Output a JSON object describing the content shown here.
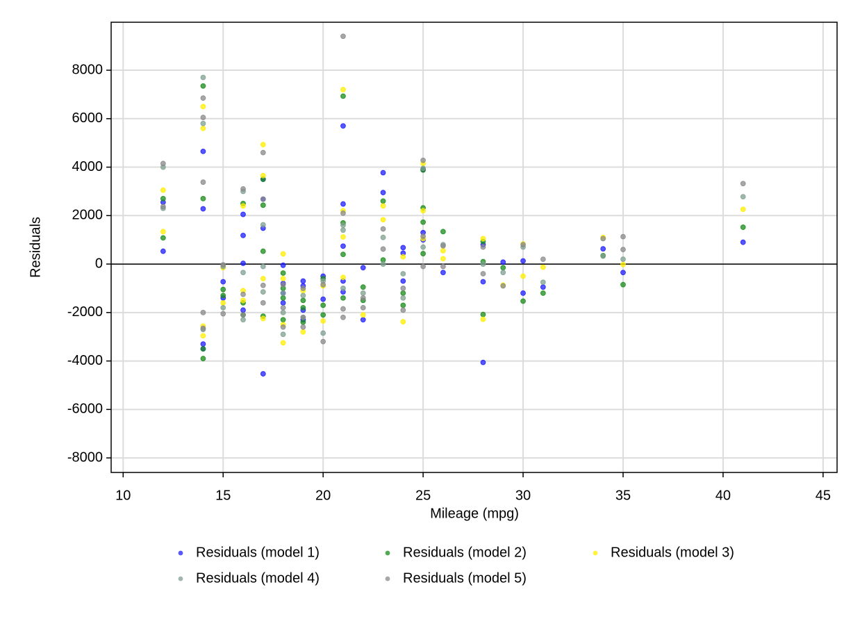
{
  "chart_data": {
    "type": "scatter",
    "x_label": "Mileage (mpg)",
    "y_label": "Residuals",
    "xlim": [
      9.4,
      45.7
    ],
    "ylim": [
      -8600,
      9980
    ],
    "xticks": [
      10,
      15,
      20,
      25,
      30,
      35,
      40,
      45
    ],
    "yticks": [
      -8000,
      -6000,
      -4000,
      -2000,
      0,
      2000,
      4000,
      6000,
      8000
    ],
    "grid": true,
    "reference_line": 0,
    "legend": "bottom",
    "series": [
      {
        "name": "Residuals (model 1)",
        "color": "#1f1fff",
        "x": [
          12,
          12,
          14,
          14,
          14,
          14,
          15,
          15,
          16,
          16,
          16,
          16,
          17,
          17,
          17,
          17,
          18,
          18,
          18,
          18,
          19,
          19,
          19,
          19,
          20,
          20,
          21,
          21,
          21,
          21,
          21,
          22,
          22,
          23,
          23,
          24,
          24,
          24,
          25,
          25,
          25,
          26,
          28,
          28,
          28,
          29,
          30,
          30,
          31,
          34,
          35,
          41
        ],
        "values": [
          2550,
          530,
          4650,
          2280,
          -3300,
          -3500,
          -1400,
          -730,
          2050,
          1180,
          30,
          -1900,
          3500,
          2680,
          1480,
          -4530,
          -50,
          -800,
          -1200,
          -1600,
          -700,
          -900,
          -1900,
          -2300,
          -500,
          -1450,
          5700,
          2480,
          740,
          -1150,
          -700,
          -150,
          -2300,
          3770,
          2950,
          680,
          450,
          -700,
          3900,
          1300,
          1000,
          -350,
          -730,
          -4060,
          800,
          80,
          -1200,
          130,
          -950,
          630,
          -350,
          900
        ]
      },
      {
        "name": "Residuals (model 2)",
        "color": "#1a8c1a",
        "x": [
          12,
          12,
          14,
          14,
          14,
          14,
          15,
          15,
          16,
          16,
          16,
          17,
          17,
          17,
          17,
          18,
          18,
          18,
          18,
          19,
          19,
          19,
          20,
          20,
          20,
          21,
          21,
          21,
          21,
          22,
          22,
          23,
          23,
          24,
          24,
          25,
          25,
          25,
          25,
          26,
          28,
          28,
          28,
          29,
          30,
          31,
          34,
          35,
          41
        ],
        "values": [
          2700,
          1080,
          7350,
          2700,
          -3500,
          -3900,
          -1050,
          -1300,
          2500,
          -2100,
          -1600,
          3500,
          2430,
          530,
          -2150,
          -370,
          -1000,
          -1400,
          -2300,
          -1500,
          -1800,
          -2400,
          -600,
          -1700,
          -2100,
          6930,
          1700,
          400,
          -1400,
          -950,
          -1500,
          2600,
          170,
          -1200,
          -1700,
          3880,
          2320,
          1730,
          430,
          1340,
          930,
          -2080,
          100,
          -150,
          -1530,
          -1200,
          350,
          -850,
          1520
        ]
      },
      {
        "name": "Residuals (model 3)",
        "color": "#ffee00",
        "x": [
          12,
          12,
          14,
          14,
          14,
          14,
          15,
          15,
          16,
          16,
          16,
          17,
          17,
          17,
          17,
          18,
          18,
          18,
          18,
          19,
          19,
          20,
          20,
          21,
          21,
          21,
          21,
          22,
          23,
          23,
          24,
          24,
          25,
          25,
          25,
          26,
          26,
          28,
          28,
          29,
          30,
          30,
          31,
          34,
          35,
          41
        ],
        "values": [
          3050,
          1340,
          6500,
          5600,
          -2560,
          -2960,
          -150,
          -1600,
          2400,
          -1100,
          -1500,
          4930,
          3650,
          -600,
          -2250,
          420,
          -600,
          -2500,
          -3250,
          -2800,
          -1100,
          -900,
          -2350,
          7200,
          2200,
          1120,
          -550,
          -2100,
          2400,
          1830,
          -2380,
          300,
          4150,
          2200,
          1050,
          550,
          220,
          1050,
          -2280,
          -870,
          830,
          -500,
          -130,
          1100,
          -20,
          2260
        ]
      },
      {
        "name": "Residuals (model 4)",
        "color": "#7fa08f",
        "x": [
          12,
          12,
          14,
          14,
          14,
          15,
          15,
          16,
          16,
          16,
          17,
          17,
          17,
          18,
          18,
          18,
          19,
          19,
          20,
          20,
          21,
          21,
          21,
          22,
          23,
          23,
          24,
          24,
          25,
          25,
          26,
          28,
          29,
          30,
          31,
          34,
          35,
          41
        ],
        "values": [
          4000,
          2300,
          7700,
          5800,
          -2700,
          -100,
          -1800,
          3000,
          -350,
          -2300,
          1620,
          -100,
          -1150,
          -1200,
          -2900,
          -2000,
          -2200,
          -1300,
          -700,
          -2850,
          1600,
          1400,
          -1000,
          -1200,
          1100,
          0,
          -400,
          -1400,
          3950,
          700,
          800,
          0,
          -350,
          700,
          -750,
          330,
          200,
          2780
        ]
      },
      {
        "name": "Residuals (model 5)",
        "color": "#8a8a8a",
        "x": [
          12,
          12,
          14,
          14,
          14,
          14,
          14,
          15,
          15,
          16,
          16,
          16,
          17,
          17,
          17,
          17,
          18,
          18,
          18,
          19,
          19,
          19,
          20,
          20,
          21,
          21,
          21,
          21,
          22,
          22,
          23,
          23,
          24,
          24,
          25,
          25,
          25,
          26,
          26,
          28,
          28,
          29,
          30,
          31,
          34,
          35,
          35,
          41
        ],
        "values": [
          4150,
          2370,
          6850,
          6050,
          3380,
          -2000,
          -2650,
          -2050,
          -30,
          3100,
          -1250,
          -2100,
          4600,
          2680,
          -880,
          -1600,
          -850,
          -1800,
          -2600,
          -1000,
          -2200,
          -2600,
          -850,
          -3200,
          9400,
          2100,
          -1850,
          -2200,
          -1400,
          -1800,
          1450,
          620,
          -1000,
          -1900,
          4280,
          1150,
          -100,
          750,
          -100,
          700,
          -400,
          -900,
          800,
          200,
          1050,
          1130,
          600,
          3320
        ]
      }
    ]
  }
}
